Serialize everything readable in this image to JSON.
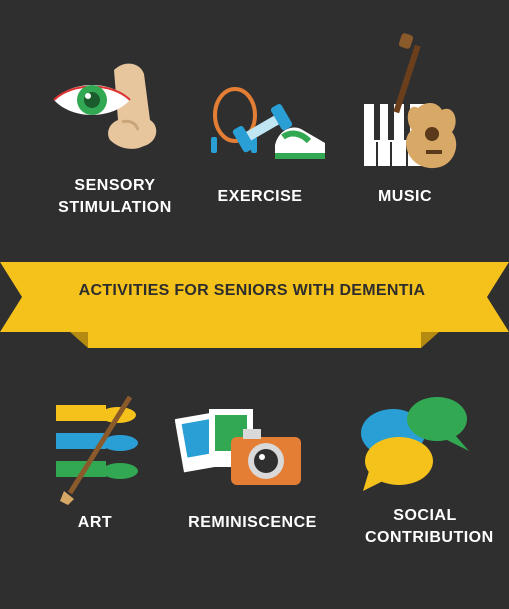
{
  "colors": {
    "background": "#2f2f2f",
    "banner": "#f5c21b",
    "banner_shadow": "#b58a10",
    "blue": "#2a9fd6",
    "green": "#33a852",
    "yellow": "#f5c21b",
    "orange": "#e57e35",
    "skin": "#e7c69e"
  },
  "activities": {
    "sensory_line1": "SENSORY",
    "sensory_line2": "STIMULATION",
    "exercise": "EXERCISE",
    "music": "MUSIC",
    "art": "ART",
    "reminiscence": "REMINISCENCE",
    "social_line1": "SOCIAL",
    "social_line2": "CONTRIBUTION"
  },
  "banner": {
    "title": "ACTIVITIES FOR SENIORS WITH DEMENTIA"
  },
  "icons": [
    "eye-nose-icon",
    "jump-rope-dumbbell-sneaker-icon",
    "piano-guitar-icon",
    "paint-tubes-brush-icon",
    "photos-camera-icon",
    "speech-bubbles-icon"
  ]
}
